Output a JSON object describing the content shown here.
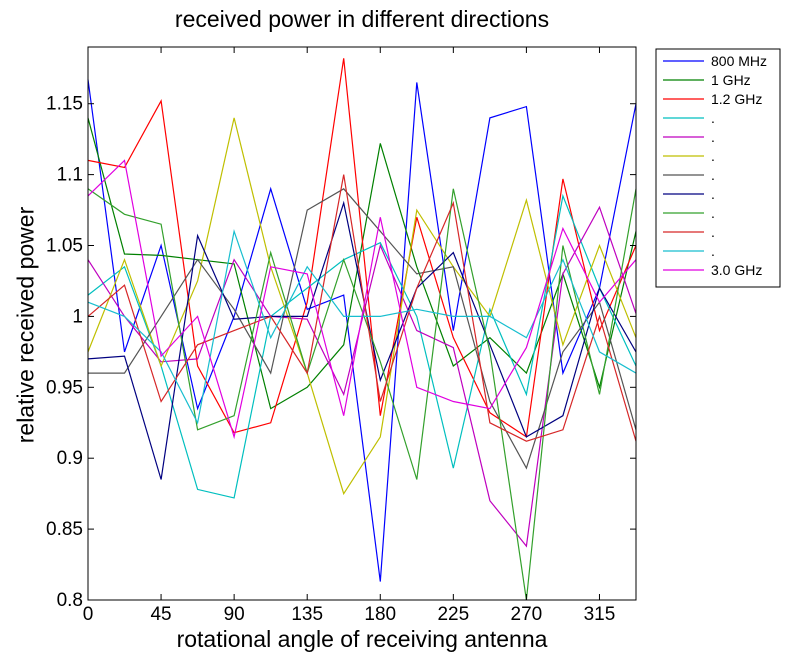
{
  "chart_data": {
    "type": "line",
    "title": "received power in different directions",
    "xlabel": "rotational angle of receiving antenna",
    "ylabel": "relative received power",
    "xlim": [
      0,
      337.5
    ],
    "ylim": [
      0.8,
      1.19
    ],
    "xticks": [
      0,
      45,
      90,
      135,
      180,
      225,
      270,
      315
    ],
    "yticks": [
      0.8,
      0.85,
      0.9,
      0.95,
      1,
      1.05,
      1.1,
      1.15
    ],
    "ytick_labels": [
      "0.8",
      "0.85",
      "0.9",
      "0.95",
      "1",
      "1.05",
      "1.1",
      "1.15"
    ],
    "grid": false,
    "legend_position": "outside-right",
    "x": [
      0,
      22.5,
      45,
      67.5,
      90,
      112.5,
      135,
      157.5,
      180,
      202.5,
      225,
      247.5,
      270,
      292.5,
      315,
      337.5
    ],
    "series": [
      {
        "name": "800 MHz",
        "color": "#0000ff",
        "values": [
          1.167,
          0.975,
          1.05,
          0.935,
          1.0,
          1.09,
          1.005,
          1.015,
          0.813,
          1.165,
          0.99,
          1.14,
          1.148,
          0.96,
          1.02,
          1.15
        ]
      },
      {
        "name": "1 GHz",
        "color": "#008000",
        "values": [
          1.14,
          1.044,
          1.043,
          1.04,
          1.037,
          0.935,
          0.95,
          0.98,
          1.122,
          1.035,
          0.965,
          0.985,
          0.96,
          1.03,
          0.95,
          1.06
        ]
      },
      {
        "name": "1.2 GHz",
        "color": "#ff0000",
        "values": [
          1.11,
          1.105,
          1.152,
          0.965,
          0.918,
          0.925,
          1.01,
          1.182,
          0.93,
          1.07,
          0.985,
          0.932,
          0.915,
          1.097,
          0.99,
          1.05
        ]
      },
      {
        "name": ".",
        "color": "#00bfbf",
        "values": [
          1.015,
          1.035,
          0.965,
          0.878,
          0.872,
          1.0,
          1.02,
          1.04,
          1.052,
          1.0,
          0.893,
          1.005,
          0.945,
          1.085,
          1.02,
          0.965
        ]
      },
      {
        "name": ".",
        "color": "#bf00bf",
        "values": [
          1.04,
          1.0,
          0.968,
          0.97,
          1.04,
          1.0,
          0.998,
          0.945,
          1.05,
          0.99,
          0.978,
          0.87,
          0.838,
          1.03,
          1.077,
          1.002
        ]
      },
      {
        "name": ".",
        "color": "#bfbf00",
        "values": [
          0.975,
          1.04,
          0.965,
          1.025,
          1.14,
          1.035,
          0.96,
          0.875,
          0.915,
          1.075,
          1.035,
          1.0,
          1.082,
          0.98,
          1.05,
          0.985
        ]
      },
      {
        "name": ".",
        "color": "#555555",
        "values": [
          0.96,
          0.96,
          1.0,
          1.04,
          1.005,
          0.96,
          1.075,
          1.09,
          1.06,
          1.03,
          1.035,
          0.94,
          0.893,
          0.975,
          1.01,
          0.92
        ]
      },
      {
        "name": ".",
        "color": "#000080",
        "values": [
          0.97,
          0.972,
          0.885,
          1.057,
          0.998,
          1.0,
          1.0,
          1.08,
          0.955,
          1.02,
          1.045,
          0.98,
          0.915,
          0.93,
          1.02,
          0.975
        ]
      },
      {
        "name": ".",
        "color": "#33a02c",
        "values": [
          1.09,
          1.072,
          1.065,
          0.92,
          0.93,
          1.045,
          0.96,
          1.04,
          0.968,
          0.885,
          1.09,
          0.975,
          0.8,
          1.05,
          0.945,
          1.09
        ]
      },
      {
        "name": ".",
        "color": "#d62728",
        "values": [
          1.0,
          1.022,
          0.94,
          0.98,
          0.99,
          1.0,
          0.96,
          1.1,
          0.94,
          1.02,
          1.08,
          0.925,
          0.912,
          0.92,
          1.0,
          0.912
        ]
      },
      {
        "name": ".",
        "color": "#17becf",
        "values": [
          1.01,
          1.0,
          0.975,
          0.925,
          1.06,
          0.985,
          1.035,
          1.0,
          1.0,
          1.005,
          1.0,
          1.0,
          0.985,
          1.04,
          0.975,
          0.96
        ]
      },
      {
        "name": "3.0 GHz",
        "color": "#e000e0",
        "values": [
          1.085,
          1.11,
          0.972,
          1.0,
          0.915,
          1.035,
          1.03,
          0.93,
          1.07,
          0.95,
          0.94,
          0.935,
          0.978,
          1.062,
          1.01,
          1.04
        ]
      }
    ]
  }
}
